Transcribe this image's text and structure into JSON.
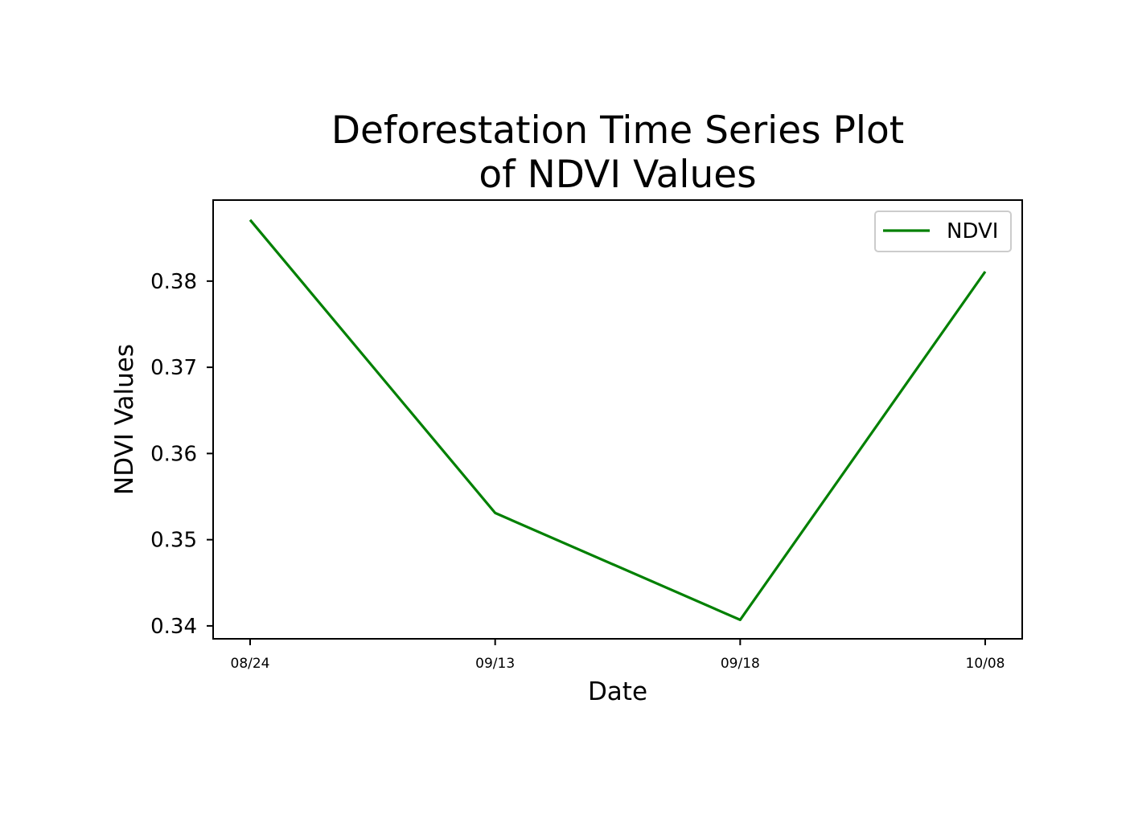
{
  "chart_data": {
    "type": "line",
    "title_lines": [
      "Deforestation Time Series Plot",
      "of NDVI Values"
    ],
    "xlabel": "Date",
    "ylabel": "NDVI Values",
    "x": [
      "08/24",
      "09/13",
      "09/18",
      "10/08"
    ],
    "series": [
      {
        "name": "NDVI",
        "color": "#008000",
        "values": [
          0.3871,
          0.3531,
          0.3407,
          0.3811
        ]
      }
    ],
    "yticks": [
      "0.34",
      "0.35",
      "0.36",
      "0.37",
      "0.38"
    ],
    "ylim": [
      0.3385,
      0.3894
    ],
    "grid": false,
    "legend_position": "top-right"
  }
}
